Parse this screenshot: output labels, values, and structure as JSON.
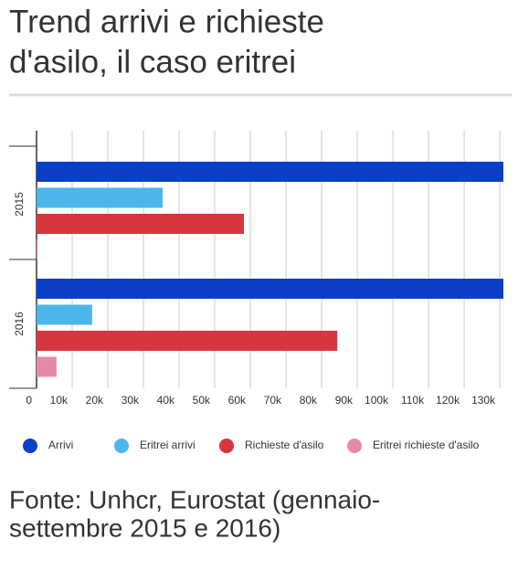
{
  "chart_data": {
    "type": "hbar",
    "title_lines": [
      "Trend arrivi e richieste",
      "d'asilo, il caso eritrei"
    ],
    "source_lines": [
      "Fonte: Unhcr, Eurostat (gennaio-",
      "settembre 2015 e 2016)"
    ],
    "categories": [
      "2015",
      "2016"
    ],
    "series": [
      {
        "name": "Arrivi",
        "color": "#0b3fc8",
        "values": [
          131000,
          131000
        ]
      },
      {
        "name": "Eritrei arrivi",
        "color": "#4cb6ea",
        "values": [
          35400,
          15600
        ]
      },
      {
        "name": "Richieste d'asilo",
        "color": "#d8363f",
        "values": [
          58200,
          84400
        ]
      },
      {
        "name": "Eritrei richieste d'asilo",
        "color": "#e68aa5",
        "values": [
          300,
          5600
        ]
      }
    ],
    "xlim": [
      0,
      131000
    ],
    "xticks": [
      0,
      {
        "value": 10000,
        "label": "10k"
      },
      {
        "value": 20000,
        "label": "20k"
      },
      {
        "value": 30000,
        "label": "30k"
      },
      {
        "value": 40000,
        "label": "40k"
      },
      {
        "value": 50000,
        "label": "50k"
      },
      {
        "value": 60000,
        "label": "60k"
      },
      {
        "value": 70000,
        "label": "70k"
      },
      {
        "value": 80000,
        "label": "80k"
      },
      {
        "value": 90000,
        "label": "90k"
      },
      {
        "value": 100000,
        "label": "100k"
      },
      {
        "value": 110000,
        "label": "110k"
      },
      {
        "value": 120000,
        "label": "120k"
      },
      {
        "value": 130000,
        "label": "130k"
      }
    ],
    "grid": true
  }
}
